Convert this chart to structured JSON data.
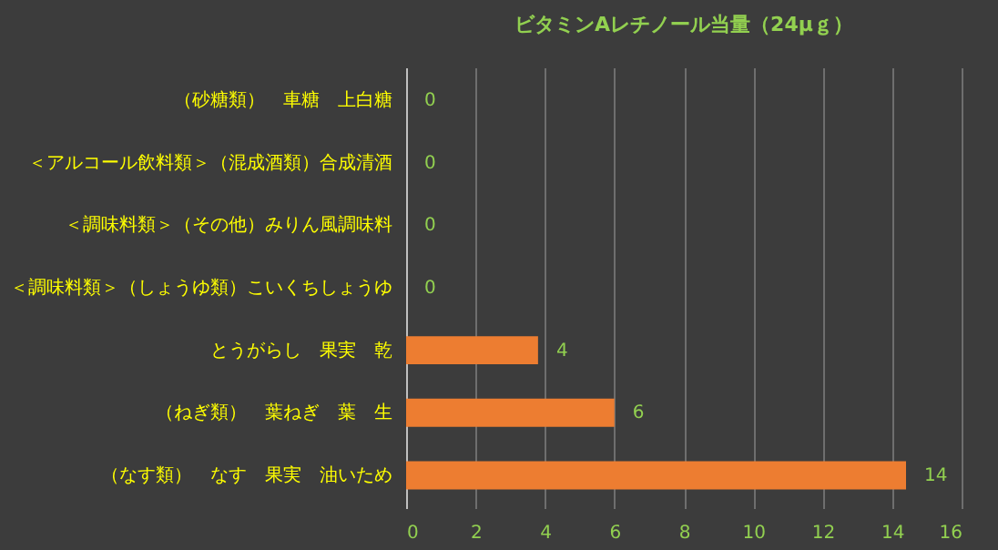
{
  "chart_data": {
    "type": "bar",
    "orientation": "horizontal",
    "title": "ビタミンAレチノール当量（24μｇ）",
    "categories": [
      "（砂糖類）　車糖　上白糖",
      "＜アルコール飲料類＞（混成酒類）合成清酒",
      "＜調味料類＞（その他）みりん風調味料",
      "＜調味料類＞（しょうゆ類）こいくちしょうゆ",
      "とうがらし　果実　乾",
      "（ねぎ類）　葉ねぎ　葉　生",
      "（なす類）　なす　果実　油いため"
    ],
    "values": [
      0,
      0,
      0,
      0,
      3.8,
      6,
      14.4
    ],
    "value_labels": [
      "0",
      "0",
      "0",
      "0",
      "4",
      "6",
      "14"
    ],
    "color": "#ed7d31",
    "xlim": [
      0,
      16
    ],
    "xticks": [
      0,
      2,
      4,
      6,
      8,
      10,
      12,
      14,
      16
    ],
    "grid": "x"
  }
}
